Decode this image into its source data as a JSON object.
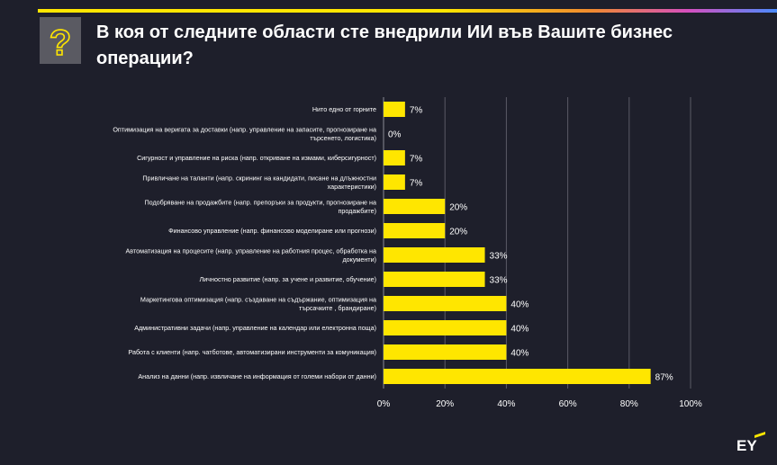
{
  "title": "В коя от следните области сте внедрили ИИ във Вашите бизнес операции?",
  "icon": "question-mark-icon",
  "logo": "EY",
  "colors": {
    "background": "#1e1f2b",
    "bar": "#ffe600",
    "icon_bg": "#5a5a62",
    "grid": "#5a5b66"
  },
  "chart_data": {
    "type": "bar",
    "orientation": "horizontal",
    "categories": [
      [
        "Нито едно от горните"
      ],
      [
        "Оптимизация на веригата за доставки (напр. управление на запасите, прогнозиране на",
        "търсенето, логистика)"
      ],
      [
        "Сигурност и управление на риска (напр. откриване на измами, киберсигурност)"
      ],
      [
        "Привличане на таланти (напр. скрининг на кандидати, писане на длъжностни",
        "характеристики)"
      ],
      [
        "Подобряване на продажбите (напр. препоръки за продукти, прогнозиране на",
        "продажбите)"
      ],
      [
        "Финансово управление (напр. финансово моделиране или прогнози)"
      ],
      [
        "Автоматизация на процесите (напр. управление на работния процес, обработка на",
        "документи)"
      ],
      [
        "Личностно развитие (напр. за учене и развитие, обучение)"
      ],
      [
        "Маркетингова оптимизация (напр. създаване на съдържание, оптимизация на",
        "търсачките , брандиране)"
      ],
      [
        "Административни задачи (напр. управление на календар или електронна поща)"
      ],
      [
        "Работа с клиенти (напр. чатботове, автоматизирани инструменти за комуникация)"
      ],
      [
        "Анализ на данни (напр. извличане на информация от големи набори от данни)"
      ]
    ],
    "values": [
      7,
      0,
      7,
      7,
      20,
      20,
      33,
      33,
      40,
      40,
      40,
      87
    ],
    "value_labels": [
      "7%",
      "0%",
      "7%",
      "7%",
      "20%",
      "20%",
      "33%",
      "33%",
      "40%",
      "40%",
      "40%",
      "87%"
    ],
    "xlim": [
      0,
      100
    ],
    "xticks": [
      0,
      20,
      40,
      60,
      80,
      100
    ],
    "xtick_labels": [
      "0%",
      "20%",
      "40%",
      "60%",
      "80%",
      "100%"
    ],
    "grid": true,
    "legend": "none"
  }
}
